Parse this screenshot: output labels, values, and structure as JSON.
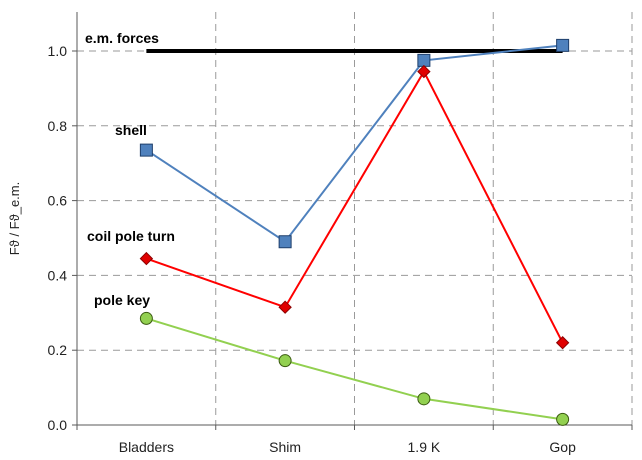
{
  "chart_data": {
    "type": "line",
    "categories": [
      "Bladders",
      "Shim",
      "1.9 K",
      "Gop"
    ],
    "ylabel": "Fϑ / Fϑ_e.m.",
    "xlabel": "",
    "title": "",
    "ylim": [
      0,
      1.05
    ],
    "yticks": [
      0.0,
      0.2,
      0.4,
      0.6,
      0.8,
      1.0
    ],
    "ytick_labels": [
      "0.0",
      "0.2",
      "0.4",
      "0.6",
      "0.8",
      "1.0"
    ],
    "grid": "dashed vertical and horizontal",
    "series": [
      {
        "name": "e.m. forces",
        "values": [
          1.0,
          1.0,
          1.0,
          1.0
        ],
        "color": "#000000",
        "marker": "none"
      },
      {
        "name": "shell",
        "values": [
          0.735,
          0.49,
          0.975,
          1.015
        ],
        "color": "#4f81bd",
        "marker": "square"
      },
      {
        "name": "coil pole turn",
        "values": [
          0.445,
          0.315,
          0.945,
          0.22
        ],
        "color": "#ff0000",
        "marker": "diamond"
      },
      {
        "name": "pole key",
        "values": [
          0.285,
          0.172,
          0.07,
          0.015
        ],
        "color": "#92d050",
        "marker": "circle"
      }
    ]
  }
}
